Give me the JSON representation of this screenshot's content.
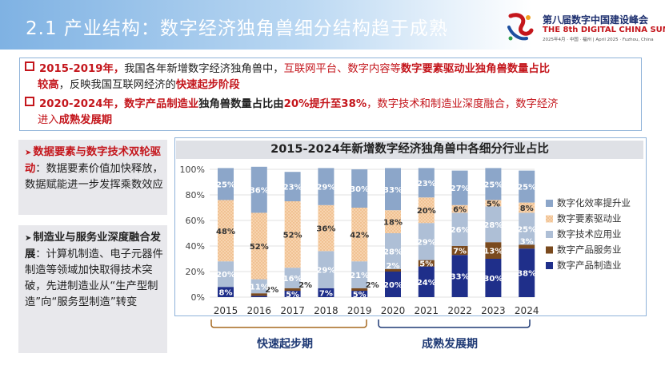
{
  "header": {
    "title": "2.1  产业结构：数字经济独角兽细分结构趋于成熟",
    "logo_title": "第八届数字中国建设峰会",
    "logo_en": "THE 8th DIGITAL CHINA SUMMIT",
    "logo_sub": "2025年4月 · 中国 · 福州  |  April 2025 · Fuzhou, China"
  },
  "summary": {
    "b1_p1": "2015-2019年，",
    "b1_p2": "我国各年新增数字经济独角兽中，",
    "b1_p3": "互联网平台、数字内容等",
    "b1_p4": "数字要素驱动业独角兽数量占比",
    "b1_p5": "较高",
    "b1_p6": "，反映我国互联网经济的",
    "b1_p7": "快速起步阶段",
    "b2_p1": "2020-2024年，",
    "b2_p2": "数字产品制造业",
    "b2_p3": "独角兽数量占比由",
    "b2_p4": "20%提升至38%",
    "b2_p5": "，数字技术和制造业深度融合，数字经济",
    "b2_p6": "进入",
    "b2_p7": "成熟发展期"
  },
  "side": {
    "p1_title": "数据要素与数字技术双轮驱动",
    "p1_text": "：数据要素价值加快释放，数据赋能进一步发挥乘数效应",
    "p2_title": "制造业与服务业深度融合发展",
    "p2_text": "：计算机制造、电子元器件制造等领域加快取得技术突破，先进制造业从“生产型制造”向“服务型制造”转变"
  },
  "chart_data": {
    "type": "bar",
    "stacked": true,
    "title": "2015-2024年新增数字经济独角兽中各细分行业占比",
    "categories": [
      "2015",
      "2016",
      "2017",
      "2018",
      "2019",
      "2020",
      "2021",
      "2022",
      "2023",
      "2024"
    ],
    "yticks": [
      "0%",
      "20%",
      "40%",
      "60%",
      "80%",
      "100%"
    ],
    "ylim": [
      0,
      100
    ],
    "series": [
      {
        "name": "数字产品制造业",
        "color": "#1f2f8a",
        "values": [
          8,
          1,
          5,
          7,
          5,
          20,
          24,
          33,
          30,
          38
        ]
      },
      {
        "name": "数字产品服务业",
        "color": "#7a4a1e",
        "values": [
          0,
          2,
          2,
          0,
          2,
          2,
          5,
          7,
          13,
          3
        ]
      },
      {
        "name": "数字技术应用业",
        "color": "#aebfd6",
        "values": [
          20,
          11,
          16,
          29,
          21,
          28,
          29,
          26,
          28,
          25
        ]
      },
      {
        "name": "数字要素驱动业",
        "color": "#f5c9a0",
        "values": [
          48,
          52,
          52,
          36,
          42,
          18,
          20,
          6,
          5,
          8
        ]
      },
      {
        "name": "数字化效率提升业",
        "color": "#8ca6c9",
        "values": [
          25,
          36,
          23,
          29,
          30,
          33,
          23,
          27,
          25,
          25
        ]
      }
    ],
    "labels": {
      "数字产品制造业": [
        "8%",
        "",
        "5%",
        "7%",
        "5%",
        "20%",
        "24%",
        "33%",
        "30%",
        "38%"
      ],
      "数字产品服务业": [
        "",
        "2%",
        "2%",
        "",
        "2%",
        "2%",
        "5%",
        "7%",
        "13%",
        "3%"
      ],
      "数字技术应用业": [
        "20%",
        "11%",
        "16%",
        "29%",
        "21%",
        "28%",
        "29%",
        "26%",
        "28%",
        "25%"
      ],
      "数字要素驱动业": [
        "48%",
        "52%",
        "52%",
        "36%",
        "42%",
        "18%",
        "20%",
        "6%",
        "5%",
        "8%"
      ],
      "数字化效率提升业": [
        "25%",
        "36%",
        "23%",
        "29%",
        "30%",
        "33%",
        "23%",
        "27%",
        "25%",
        "25%"
      ]
    },
    "legend_position": "right",
    "phases": [
      "快速起步期",
      "成熟发展期"
    ]
  }
}
